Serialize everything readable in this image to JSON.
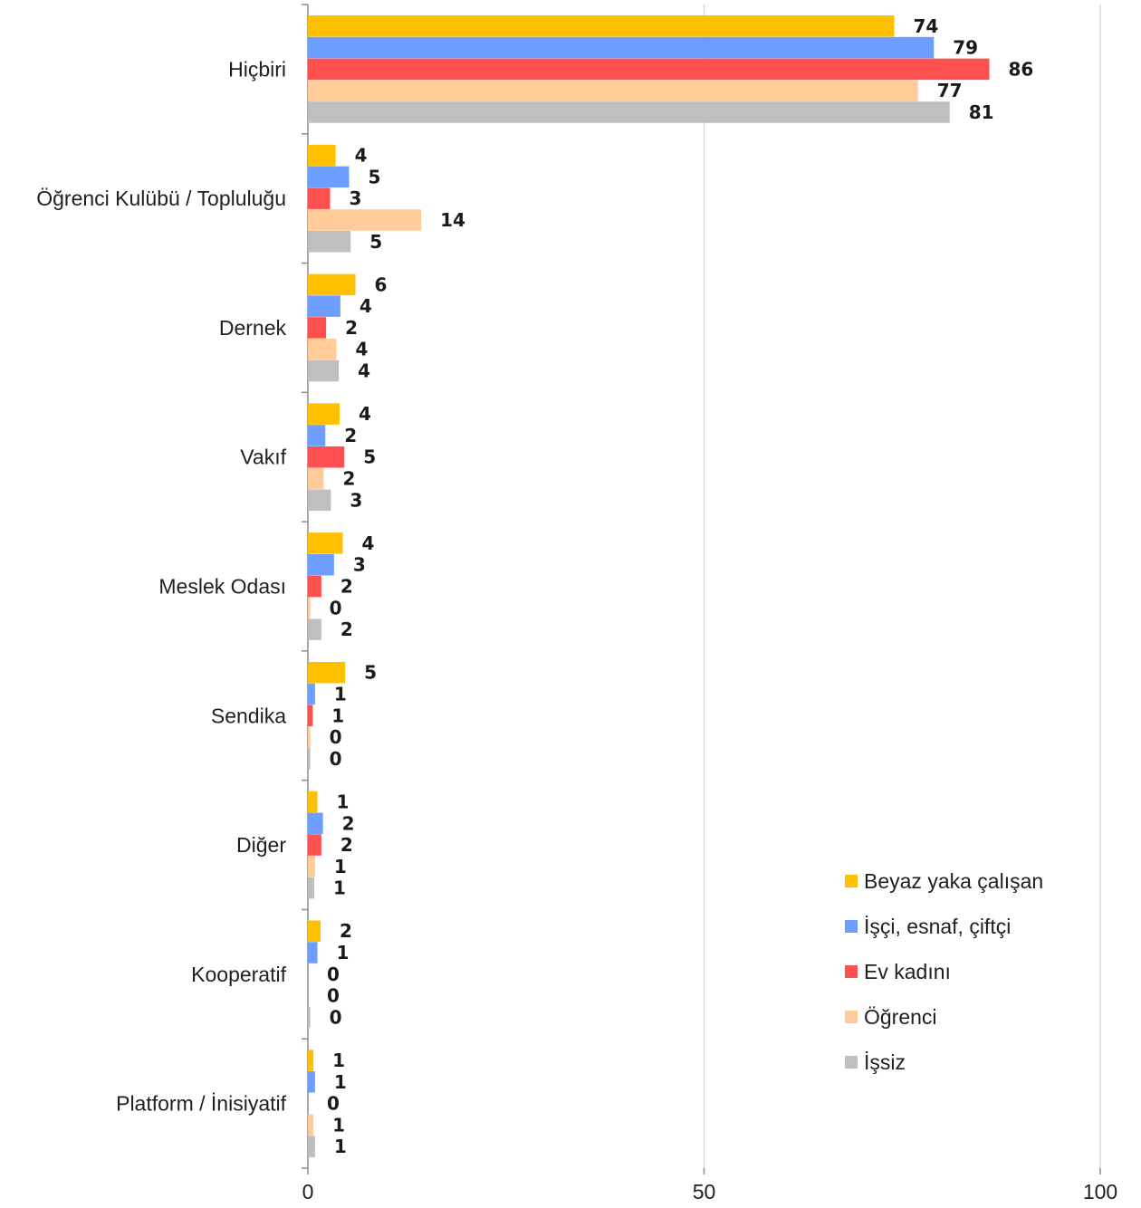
{
  "chart_data": {
    "type": "bar",
    "orientation": "horizontal",
    "categories": [
      "Hiçbiri",
      "Öğrenci Kulübü / Topluluğu",
      "Dernek",
      "Vakıf",
      "Meslek Odası",
      "Sendika",
      "Diğer",
      "Kooperatif",
      "Platform / İnisiyatif"
    ],
    "series": [
      {
        "name": "Beyaz yaka çalışan",
        "color": "#FFC000",
        "values": [
          74,
          3.5,
          6,
          4,
          4.4,
          4.7,
          1.2,
          1.6,
          0.7
        ],
        "labels": [
          "74",
          "4",
          "6",
          "4",
          "4",
          "5",
          "1",
          "2",
          "1"
        ]
      },
      {
        "name": "İşçi, esnaf, çiftçi",
        "color": "#6D9EFF",
        "values": [
          79,
          5.2,
          4.1,
          2.2,
          3.3,
          0.9,
          1.9,
          1.2,
          0.9
        ],
        "labels": [
          "79",
          "5",
          "4",
          "2",
          "3",
          "1",
          "2",
          "1",
          "1"
        ]
      },
      {
        "name": "Ev kadını",
        "color": "#FF4F4F",
        "values": [
          86,
          2.8,
          2.3,
          4.6,
          1.7,
          0.6,
          1.7,
          0,
          0
        ],
        "labels": [
          "86",
          "3",
          "2",
          "5",
          "2",
          "1",
          "2",
          "0",
          "0"
        ]
      },
      {
        "name": "Öğrenci",
        "color": "#FFCC99",
        "values": [
          77,
          14.3,
          3.6,
          2,
          0.3,
          0.3,
          0.9,
          0,
          0.7
        ],
        "labels": [
          "77",
          "14",
          "4",
          "2",
          "0",
          "0",
          "1",
          "0",
          "1"
        ]
      },
      {
        "name": "İşsiz",
        "color": "#BFBFBF",
        "values": [
          81,
          5.4,
          3.9,
          2.9,
          1.7,
          0.3,
          0.8,
          0.3,
          0.9
        ],
        "labels": [
          "81",
          "5",
          "4",
          "3",
          "2",
          "0",
          "1",
          "0",
          "1"
        ]
      }
    ],
    "xlim": [
      0,
      100
    ],
    "x_ticks": [
      "0",
      "50",
      "100"
    ],
    "grid": true,
    "legend_position": "bottom-right"
  }
}
